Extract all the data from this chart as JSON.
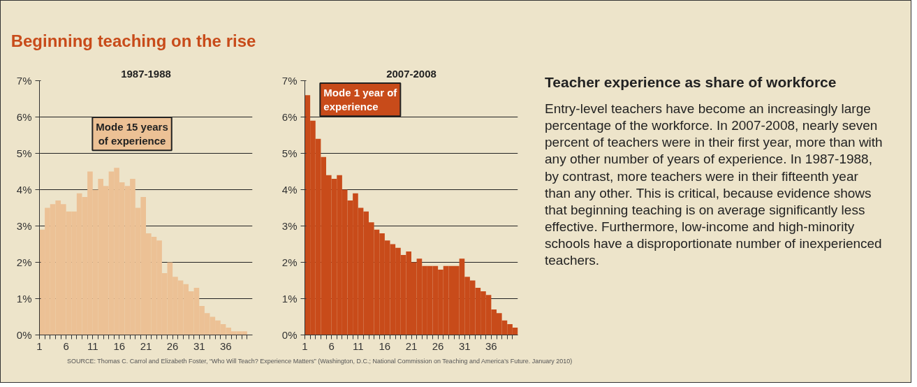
{
  "chart_data": [
    {
      "type": "histogram",
      "title": "Beginning teaching on the rise",
      "subtitle": "1987-1988",
      "bins": [
        1,
        2,
        3,
        4,
        5,
        6,
        7,
        8,
        9,
        10,
        11,
        12,
        13,
        14,
        15,
        16,
        17,
        18,
        19,
        20,
        21,
        22,
        23,
        24,
        25,
        26,
        27,
        28,
        29,
        30,
        31,
        32,
        33,
        34,
        35,
        36,
        37,
        38,
        39,
        40
      ],
      "values": [
        2.9,
        3.5,
        3.6,
        3.7,
        3.6,
        3.4,
        3.4,
        3.9,
        3.8,
        4.5,
        4.0,
        4.3,
        4.1,
        4.5,
        4.6,
        4.2,
        4.1,
        4.3,
        3.5,
        3.8,
        2.8,
        2.7,
        2.6,
        1.7,
        2.0,
        1.6,
        1.5,
        1.4,
        1.2,
        1.3,
        0.8,
        0.6,
        0.5,
        0.4,
        0.3,
        0.2,
        0.1,
        0.1,
        0.1
      ],
      "color": "#ecc195",
      "xlim": [
        1,
        41
      ],
      "xticks": [
        1,
        {
          "value": 2,
          "label": null
        },
        {
          "value": 3,
          "label": null
        },
        {
          "value": 4,
          "label": null
        },
        {
          "value": 5,
          "label": null
        },
        6,
        {
          "value": 7,
          "label": null
        },
        {
          "value": 8,
          "label": null
        },
        {
          "value": 9,
          "label": null
        },
        {
          "value": 10,
          "label": null
        },
        11,
        {
          "value": 12,
          "label": null
        },
        {
          "value": 13,
          "label": null
        },
        {
          "value": 14,
          "label": null
        },
        {
          "value": 15,
          "label": null
        },
        16,
        {
          "value": 17,
          "label": null
        },
        {
          "value": 18,
          "label": null
        },
        {
          "value": 19,
          "label": null
        },
        {
          "value": 20,
          "label": null
        },
        21,
        {
          "value": 22,
          "label": null
        },
        {
          "value": 23,
          "label": null
        },
        {
          "value": 24,
          "label": null
        },
        {
          "value": 25,
          "label": null
        },
        26,
        {
          "value": 27,
          "label": null
        },
        {
          "value": 28,
          "label": null
        },
        {
          "value": 29,
          "label": null
        },
        {
          "value": 30,
          "label": null
        },
        31,
        {
          "value": 32,
          "label": null
        },
        {
          "value": 33,
          "label": null
        },
        {
          "value": 34,
          "label": null
        },
        {
          "value": 35,
          "label": null
        },
        36,
        {
          "value": 37,
          "label": null
        },
        {
          "value": 38,
          "label": null
        },
        {
          "value": 39,
          "label": null
        },
        {
          "value": 40,
          "label": null
        }
      ],
      "ylim": [
        0,
        7
      ],
      "yticks": [
        {
          "value": 0,
          "label": "0%"
        },
        {
          "value": 1,
          "label": "1%"
        },
        {
          "value": 2,
          "label": "2%"
        },
        {
          "value": 3,
          "label": "3%"
        },
        {
          "value": 4,
          "label": "4%"
        },
        {
          "value": 5,
          "label": "5%"
        },
        {
          "value": 6,
          "label": "6%"
        },
        {
          "value": 7,
          "label": "7%"
        }
      ],
      "grid": "y",
      "annotations": [
        {
          "text": "Mode 15 years of experience",
          "x": 15.5,
          "y": 4.6
        },
        "SOURCE: Thomas C. Carrol and Elizabeth Foster, “Who Will Teach? Experience Matters” (Washington, D.C.; National Commission on Teaching and America’s Future. January 2010)"
      ]
    },
    {
      "type": "histogram",
      "subtitle": "2007-2008",
      "bins": [
        1,
        2,
        3,
        4,
        5,
        6,
        7,
        8,
        9,
        10,
        11,
        12,
        13,
        14,
        15,
        16,
        17,
        18,
        19,
        20,
        21,
        22,
        23,
        24,
        25,
        26,
        27,
        28,
        29,
        30,
        31,
        32,
        33,
        34,
        35,
        36,
        37,
        38,
        39,
        40,
        41
      ],
      "values": [
        6.6,
        5.9,
        5.4,
        4.9,
        4.4,
        4.3,
        4.4,
        4.0,
        3.7,
        3.9,
        3.5,
        3.4,
        3.1,
        2.9,
        2.8,
        2.6,
        2.5,
        2.4,
        2.2,
        2.3,
        2.0,
        2.1,
        1.9,
        1.9,
        1.9,
        1.8,
        1.9,
        1.9,
        1.9,
        2.1,
        1.6,
        1.5,
        1.3,
        1.2,
        1.1,
        0.7,
        0.6,
        0.4,
        0.3,
        0.2
      ],
      "color": "#c84b1a",
      "xlim": [
        1,
        41
      ],
      "xticks": [
        1,
        {
          "value": 2,
          "label": null
        },
        {
          "value": 3,
          "label": null
        },
        {
          "value": 4,
          "label": null
        },
        {
          "value": 5,
          "label": null
        },
        6,
        {
          "value": 7,
          "label": null
        },
        {
          "value": 8,
          "label": null
        },
        {
          "value": 9,
          "label": null
        },
        {
          "value": 10,
          "label": null
        },
        11,
        {
          "value": 12,
          "label": null
        },
        {
          "value": 13,
          "label": null
        },
        {
          "value": 14,
          "label": null
        },
        {
          "value": 15,
          "label": null
        },
        16,
        {
          "value": 17,
          "label": null
        },
        {
          "value": 18,
          "label": null
        },
        {
          "value": 19,
          "label": null
        },
        {
          "value": 20,
          "label": null
        },
        21,
        {
          "value": 22,
          "label": null
        },
        {
          "value": 23,
          "label": null
        },
        {
          "value": 24,
          "label": null
        },
        {
          "value": 25,
          "label": null
        },
        26,
        {
          "value": 27,
          "label": null
        },
        {
          "value": 28,
          "label": null
        },
        {
          "value": 29,
          "label": null
        },
        {
          "value": 30,
          "label": null
        },
        31,
        {
          "value": 32,
          "label": null
        },
        {
          "value": 33,
          "label": null
        },
        {
          "value": 34,
          "label": null
        },
        {
          "value": 35,
          "label": null
        },
        36,
        {
          "value": 37,
          "label": null
        },
        {
          "value": 38,
          "label": null
        },
        {
          "value": 39,
          "label": null
        },
        {
          "value": 40,
          "label": null
        }
      ],
      "ylim": [
        0,
        7
      ],
      "yticks": [
        {
          "value": 0,
          "label": "0%"
        },
        {
          "value": 1,
          "label": "1%"
        },
        {
          "value": 2,
          "label": "2%"
        },
        {
          "value": 3,
          "label": "3%"
        },
        {
          "value": 4,
          "label": "4%"
        },
        {
          "value": 5,
          "label": "5%"
        },
        {
          "value": 6,
          "label": "6%"
        },
        {
          "value": 7,
          "label": "7%"
        }
      ],
      "grid": "y",
      "annotations": [
        {
          "text": "Mode 1 year of experience",
          "x": 1.5,
          "y": 6.6
        }
      ]
    },
    {
      "type": "other",
      "title": "Teacher experience as share of workforce",
      "annotations": [
        "Entry-level teachers have become an increasingly large percentage of the workforce. In 2007-2008, nearly seven percent of teachers were in their first year, more than with any other number of years of experience. In 1987-1988, by contrast, more teachers were in their fifteenth year than any other. This is critical, because evidence shows that beginning teaching is on average significantly less effective. Furthermore, low-income and high-minority schools have a disproportionate number of inexperienced teachers."
      ]
    }
  ]
}
